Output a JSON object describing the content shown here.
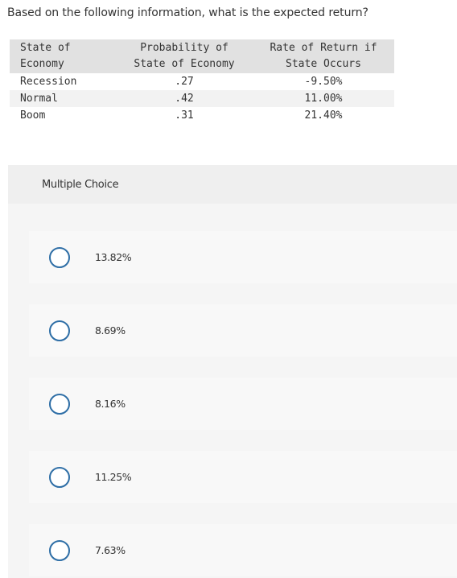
{
  "question": {
    "text": "Based on the following information, what is the expected return?"
  },
  "table": {
    "headers": [
      [
        "State of",
        "Economy"
      ],
      [
        "Probability of",
        "State of Economy"
      ],
      [
        "Rate of Return if",
        "State Occurs"
      ]
    ],
    "rows": [
      {
        "state": "Recession",
        "probability": ".27",
        "return": "-9.50%"
      },
      {
        "state": "Normal",
        "probability": ".42",
        "return": "11.00%"
      },
      {
        "state": "Boom",
        "probability": ".31",
        "return": "21.40%"
      }
    ]
  },
  "multiple_choice": {
    "title": "Multiple Choice",
    "options": [
      {
        "label": "13.82%",
        "selected": false
      },
      {
        "label": "8.69%",
        "selected": false
      },
      {
        "label": "8.16%",
        "selected": false
      },
      {
        "label": "11.25%",
        "selected": false
      },
      {
        "label": "7.63%",
        "selected": false
      }
    ]
  },
  "colors": {
    "radio_border": "#2e6ea6",
    "table_header_bg": "#e1e1e1",
    "table_alt_row_bg": "#f2f2f2",
    "panel_bg": "#f5f5f5",
    "option_bg": "#f8f8f8",
    "text": "#333333"
  }
}
